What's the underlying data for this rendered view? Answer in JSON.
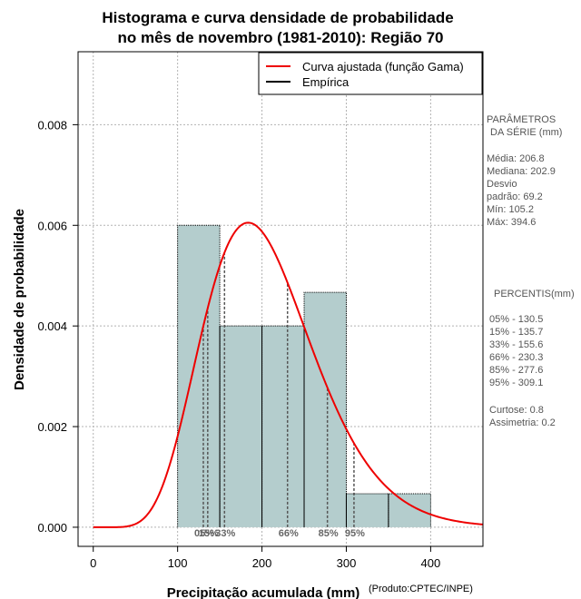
{
  "chart_data": {
    "type": "histogram",
    "title_lines": [
      "Histograma e curva densidade de probabilidade",
      "no mês de novembro (1981-2010): Região 70"
    ],
    "xlabel": "Precipitação acumulada (mm)",
    "ylabel": "Densidade de probabilidade",
    "credit": "(Produto:CPTEC/INPE)",
    "xlim": [
      -18,
      462
    ],
    "ylim": [
      -0.00038,
      0.00945
    ],
    "x_ticks": [
      0,
      100,
      200,
      300,
      400
    ],
    "y_ticks": [
      0.0,
      0.002,
      0.004,
      0.006,
      0.008
    ],
    "y_tick_labels": [
      "0.000",
      "0.002",
      "0.004",
      "0.006",
      "0.008"
    ],
    "grid": true,
    "bins": [
      {
        "start": 100,
        "end": 150,
        "density": 0.006
      },
      {
        "start": 150,
        "end": 200,
        "density": 0.004
      },
      {
        "start": 200,
        "end": 250,
        "density": 0.004
      },
      {
        "start": 250,
        "end": 300,
        "density": 0.004667
      },
      {
        "start": 300,
        "end": 350,
        "density": 0.000667
      },
      {
        "start": 350,
        "end": 400,
        "density": 0.000667
      }
    ],
    "gamma_fit": {
      "shape": 8.93,
      "scale": 23.16,
      "series_name": "Curva ajustada (função Gama)"
    },
    "empirical_series_name": "Empírica",
    "percentile_lines": [
      {
        "value": 130.5,
        "label": "05%"
      },
      {
        "value": 135.7,
        "label": "15%"
      },
      {
        "value": 155.6,
        "label": "33%"
      },
      {
        "value": 230.3,
        "label": "66%"
      },
      {
        "value": 277.6,
        "label": "85%"
      },
      {
        "value": 309.1,
        "label": "95%"
      }
    ],
    "legend_position": "top-right",
    "colors": {
      "bar_fill": "#b4cdcd",
      "curve": "#ee0000",
      "grid": "#b3b3b3",
      "empirical": "#000000",
      "percentile": "#555555",
      "side_text": "#555555"
    }
  },
  "side_panel": {
    "params_header_1": "PARÂMETROS",
    "params_header_2": "DA SÉRIE (mm)",
    "params": [
      "Média:  206.8",
      "Mediana:  202.9",
      "Desvio",
      "padrão:  69.2",
      "Mín:  105.2",
      "Máx:  394.6"
    ],
    "percentis_header": "PERCENTIS(mm)",
    "percentis": [
      "05% -   130.5",
      "15% -   135.7",
      "33% -   155.6",
      "66% -   230.3",
      "85% -   277.6",
      "95% -   309.1"
    ],
    "stats": [
      "Curtose:  0.8",
      "Assimetria:  0.2"
    ]
  }
}
